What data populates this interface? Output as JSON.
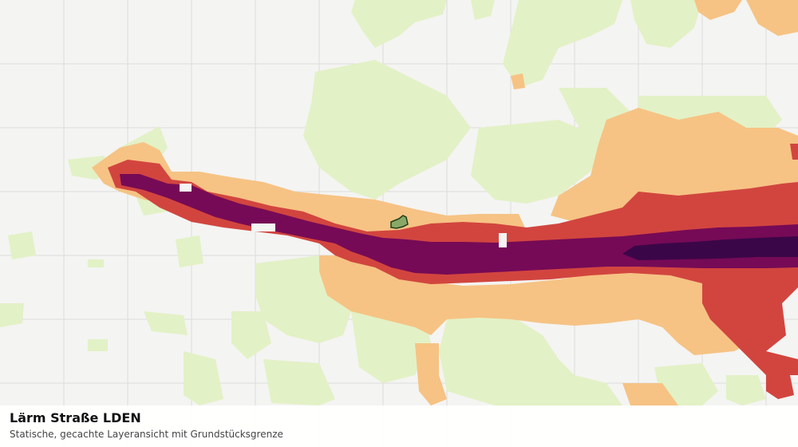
{
  "caption": {
    "title": "Lärm Straße LDEN",
    "subtitle": "Statische, gecachte Layeransicht mit Grundstücksgrenze"
  },
  "colors": {
    "background": "#f4f4f2",
    "grid": "#dcdcdc",
    "noise_lowest": "#e3f1c6",
    "noise_low": "#f6c384",
    "noise_medium": "#d2453f",
    "noise_high": "#760a56",
    "noise_highest": "#3b0648",
    "parcel_fill": "#89a867",
    "parcel_stroke": "#1f3f1a"
  }
}
